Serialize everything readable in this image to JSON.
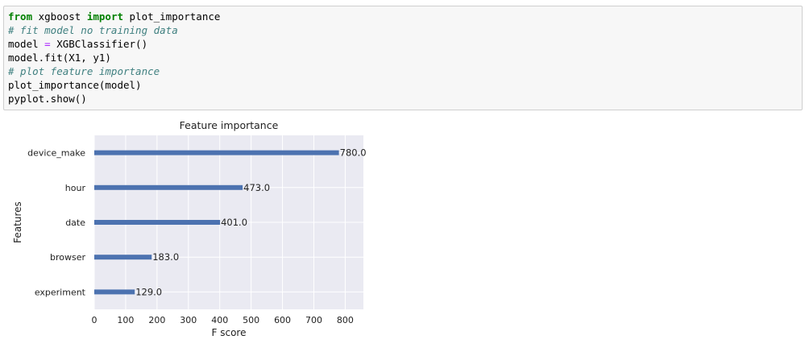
{
  "code_cell": {
    "lines": [
      [
        {
          "t": "from",
          "c": "kw"
        },
        {
          "t": " xgboost ",
          "c": ""
        },
        {
          "t": "import",
          "c": "kw"
        },
        {
          "t": " plot_importance",
          "c": ""
        }
      ],
      [
        {
          "t": "# fit model no training data",
          "c": "cm"
        }
      ],
      [
        {
          "t": "model ",
          "c": ""
        },
        {
          "t": "=",
          "c": "op"
        },
        {
          "t": " XGBClassifier()",
          "c": ""
        }
      ],
      [
        {
          "t": "model.fit(X1, y1)",
          "c": ""
        }
      ],
      [
        {
          "t": "# plot feature importance",
          "c": "cm"
        }
      ],
      [
        {
          "t": "plot_importance(model)",
          "c": ""
        }
      ],
      [
        {
          "t": "pyplot.show()",
          "c": ""
        }
      ]
    ]
  },
  "chart_data": {
    "type": "bar",
    "orientation": "horizontal",
    "title": "Feature importance",
    "xlabel": "F score",
    "ylabel": "Features",
    "categories": [
      "device_make",
      "hour",
      "date",
      "browser",
      "experiment"
    ],
    "values": [
      780,
      473,
      401,
      183,
      129
    ],
    "value_labels": [
      "780.0",
      "473.0",
      "401.0",
      "183.0",
      "129.0"
    ],
    "xlim": [
      0,
      858
    ],
    "xticks": [
      0,
      100,
      200,
      300,
      400,
      500,
      600,
      700,
      800
    ],
    "grid": true,
    "bar_color": "#4c72b0",
    "background_color": "#eaeaf2"
  }
}
